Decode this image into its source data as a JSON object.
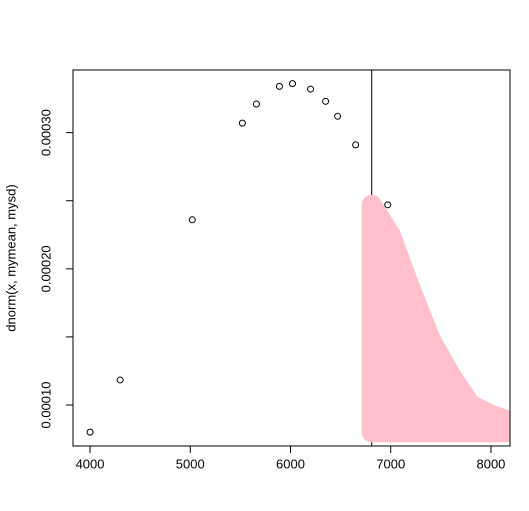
{
  "chart_data": {
    "type": "scatter",
    "y_label": "dnorm(x, mymean, mysd)",
    "x": [
      4000,
      4300,
      5020,
      5520,
      5660,
      5890,
      6020,
      6200,
      6350,
      6470,
      6650,
      6970
    ],
    "values": [
      8.01e-05,
      0.0001184,
      0.000236,
      0.000307,
      0.000321,
      0.000334,
      0.000336,
      0.000332,
      0.000323,
      0.000312,
      0.000291,
      0.000247
    ],
    "point_color": "#000000",
    "xlim": [
      3830,
      8190
    ],
    "ylim": [
      6.99e-05,
      0.000346
    ],
    "xticks": [
      4000,
      5000,
      6000,
      7000,
      8000
    ],
    "yticks": [
      {
        "value": 0.0001,
        "label": "0.00010"
      },
      {
        "value": 0.0002,
        "label": "0.00020"
      },
      {
        "value": 0.0003,
        "label": "0.00030"
      }
    ],
    "yminor_ticks": [
      0.00015,
      0.00025
    ],
    "vline": 6810,
    "polygon": {
      "color": "pink",
      "x": [
        6810,
        7000,
        7200,
        7400,
        7600,
        7800,
        8000,
        8150,
        8150,
        6810
      ],
      "values": [
        0.000247,
        0.000225,
        0.000185,
        0.000148,
        0.000122,
        0.0001,
        9.3e-05,
        8.9e-05,
        8e-05,
        8e-05
      ]
    }
  }
}
